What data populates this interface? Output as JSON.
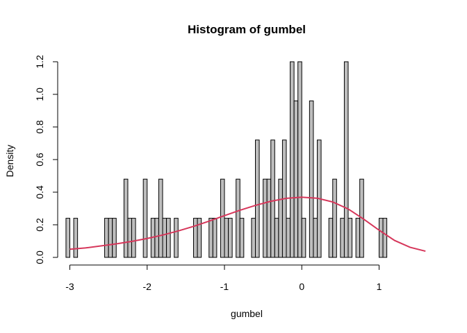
{
  "chart_data": {
    "type": "bar",
    "subtype": "histogram-with-density-curve",
    "title": "Histogram of gumbel",
    "xlabel": "gumbel",
    "ylabel": "Density",
    "xlim": [
      -3.05,
      1.6
    ],
    "ylim": [
      0,
      1.2
    ],
    "x_ticks": [
      -3,
      -2,
      -1,
      0,
      1
    ],
    "y_ticks": [
      0.0,
      0.2,
      0.4,
      0.6,
      0.8,
      1.0,
      1.2
    ],
    "x_tick_labels": [
      "-3",
      "-2",
      "-1",
      "0",
      "1"
    ],
    "y_tick_labels": [
      "0.0",
      "0.2",
      "0.4",
      "0.6",
      "0.8",
      "1.0",
      "1.2"
    ],
    "grid": false,
    "legend": "none",
    "bin_width": 0.05,
    "bin_start": -3.05,
    "bin_densities": [
      0.24,
      0,
      0.24,
      0,
      0,
      0,
      0,
      0,
      0,
      0,
      0.24,
      0.24,
      0.24,
      0,
      0,
      0.48,
      0.24,
      0.24,
      0,
      0,
      0.48,
      0,
      0.24,
      0.24,
      0.48,
      0.24,
      0.24,
      0,
      0.24,
      0,
      0,
      0,
      0,
      0.24,
      0.24,
      0,
      0,
      0.24,
      0.24,
      0,
      0.48,
      0.24,
      0.24,
      0,
      0.48,
      0.24,
      0,
      0,
      0.24,
      0.72,
      0,
      0.48,
      0.48,
      0.72,
      0.24,
      0.48,
      0.72,
      0.24,
      1.2,
      0.96,
      1.2,
      0.24,
      0,
      0.96,
      0.24,
      0.72,
      0,
      0,
      0.24,
      0.48,
      0,
      0.24,
      1.2,
      0.24,
      0,
      0.24,
      0.48,
      0,
      0,
      0,
      0,
      0.24,
      0.24
    ],
    "series": [
      {
        "type": "line",
        "color": "#d6365a",
        "x": [
          -3.0,
          -2.8,
          -2.6,
          -2.4,
          -2.2,
          -2.0,
          -1.8,
          -1.6,
          -1.4,
          -1.2,
          -1.0,
          -0.8,
          -0.6,
          -0.4,
          -0.2,
          0.0,
          0.2,
          0.4,
          0.6,
          0.8,
          1.0,
          1.2,
          1.4,
          1.6
        ],
        "y": [
          0.05,
          0.058,
          0.07,
          0.083,
          0.098,
          0.116,
          0.137,
          0.162,
          0.19,
          0.222,
          0.256,
          0.289,
          0.319,
          0.344,
          0.362,
          0.369,
          0.363,
          0.34,
          0.297,
          0.235,
          0.167,
          0.104,
          0.062,
          0.038
        ]
      }
    ],
    "colors": {
      "bar_fill": "#bebebe",
      "bar_border": "#000000"
    }
  }
}
